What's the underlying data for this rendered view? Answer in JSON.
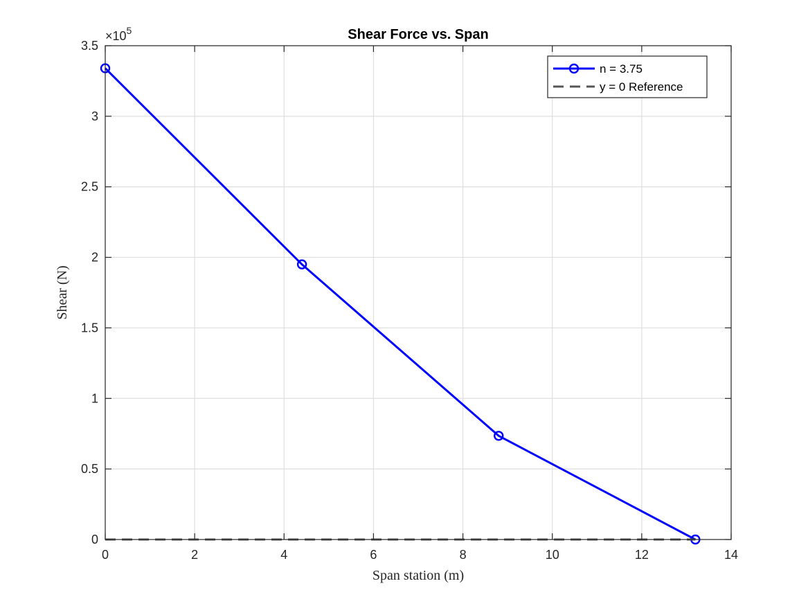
{
  "chart_data": {
    "type": "line",
    "title": "Shear Force vs. Span",
    "xlabel": "Span station (m)",
    "ylabel": "Shear (N)",
    "xlim": [
      0,
      14
    ],
    "ylim": [
      0,
      350000
    ],
    "x_ticks": [
      "0",
      "2",
      "4",
      "6",
      "8",
      "10",
      "12",
      "14"
    ],
    "y_ticks": [
      "0",
      "0.5",
      "1",
      "1.5",
      "2",
      "2.5",
      "3",
      "3.5"
    ],
    "y_multiplier": {
      "base": "×10",
      "exponent": "5"
    },
    "grid": true,
    "legend_position": "top-right",
    "series": [
      {
        "name": "n = 3.75",
        "color": "#0000ff",
        "style": "solid",
        "marker": "circle",
        "x": [
          0,
          4.4,
          8.8,
          13.2
        ],
        "y": [
          334000,
          195000,
          73500,
          0
        ]
      },
      {
        "name": "y = 0 Reference",
        "color": "#555555",
        "style": "dashed",
        "marker": "none",
        "x": [
          0,
          13.2
        ],
        "y": [
          0,
          0
        ]
      }
    ]
  }
}
